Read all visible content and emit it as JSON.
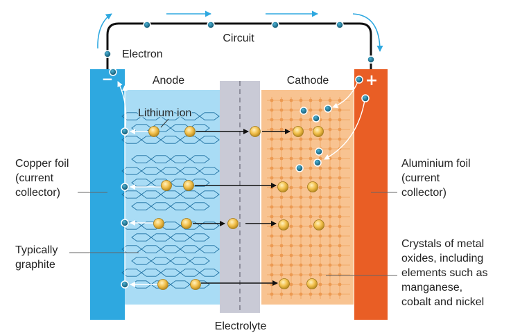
{
  "labels": {
    "circuit": "Circuit",
    "electron": "Electron",
    "anode": "Anode",
    "cathode": "Cathode",
    "lithium_ion": "Lithium ion",
    "copper_foil": [
      "Copper foil",
      "(current",
      "collector)"
    ],
    "aluminium_foil": [
      "Aluminium foil",
      "(current",
      "collector)"
    ],
    "typically_graphite": [
      "Typically",
      "graphite"
    ],
    "crystals": [
      "Crystals of metal",
      "oxides, including",
      "elements such as",
      "manganese,",
      "cobalt and nickel"
    ],
    "electrolyte": "Electrolyte",
    "minus_sign": "−",
    "plus_sign": "+"
  },
  "colors": {
    "copper_foil": "#2ea8e0",
    "aluminium_foil": "#e95e25",
    "anode_region": "#a9dcf5",
    "cathode_region": "#f8c391",
    "electrolyte": "#c9cad6",
    "electron": "#0f6a8b",
    "lithium_ion": "#f2c04c",
    "circuit_wire": "#111111",
    "flow_arrow": "#2ea8e0"
  }
}
